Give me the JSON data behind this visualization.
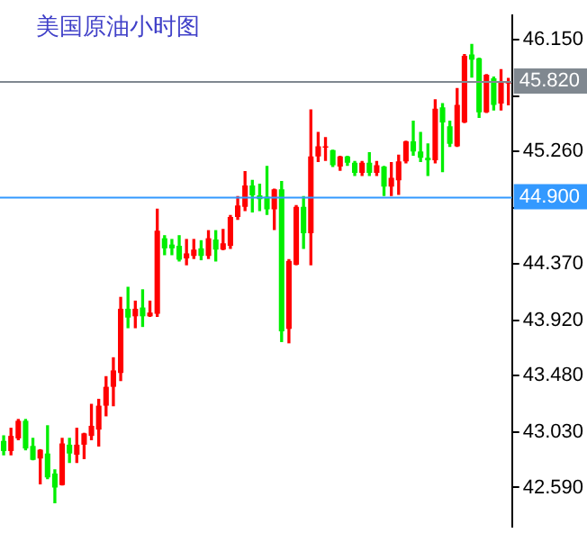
{
  "chart_data": {
    "type": "candlestick",
    "title": "美国原油小时图",
    "categories": [
      null,
      null,
      null,
      null,
      null,
      null,
      null,
      null,
      null,
      null,
      null,
      null,
      null,
      null,
      null,
      null,
      null,
      null,
      null,
      null,
      null,
      null,
      null,
      null,
      null,
      null,
      null,
      null,
      null,
      null,
      null,
      null,
      null,
      null,
      null,
      null,
      null,
      null,
      null,
      null,
      null,
      null,
      null,
      null,
      null,
      null,
      null,
      null,
      null,
      null,
      null,
      null,
      null,
      null,
      null,
      null,
      null,
      null,
      null,
      null,
      null,
      null,
      null,
      null,
      null,
      null,
      null,
      null,
      null,
      null
    ],
    "ohlc": [
      [
        42.96,
        43.0,
        42.85,
        42.88
      ],
      [
        42.88,
        43.06,
        42.85,
        43.0
      ],
      [
        42.98,
        43.13,
        42.97,
        43.12
      ],
      [
        43.12,
        43.13,
        42.89,
        42.9
      ],
      [
        42.92,
        42.98,
        42.81,
        42.81
      ],
      [
        42.82,
        42.89,
        42.62,
        42.89
      ],
      [
        42.86,
        43.08,
        42.66,
        42.67
      ],
      [
        42.7,
        42.73,
        42.47,
        42.59
      ],
      [
        42.61,
        42.98,
        42.61,
        42.94
      ],
      [
        42.93,
        42.98,
        42.79,
        42.86
      ],
      [
        42.85,
        43.06,
        42.79,
        42.93
      ],
      [
        42.93,
        43.02,
        42.82,
        43.02
      ],
      [
        43.0,
        43.25,
        42.97,
        43.08
      ],
      [
        43.05,
        43.29,
        42.92,
        43.24
      ],
      [
        43.24,
        43.47,
        43.16,
        43.39
      ],
      [
        43.39,
        43.62,
        43.24,
        43.52
      ],
      [
        43.5,
        44.1,
        43.44,
        44.01
      ],
      [
        44.01,
        44.18,
        43.86,
        43.94
      ],
      [
        43.95,
        44.07,
        43.86,
        44.01
      ],
      [
        44.02,
        44.16,
        43.87,
        43.95
      ],
      [
        43.95,
        44.07,
        43.95,
        43.98
      ],
      [
        43.97,
        44.8,
        43.95,
        44.63
      ],
      [
        44.57,
        44.59,
        44.44,
        44.49
      ],
      [
        44.52,
        44.56,
        44.44,
        44.49
      ],
      [
        44.51,
        44.59,
        44.39,
        44.4
      ],
      [
        44.41,
        44.56,
        44.36,
        44.45
      ],
      [
        44.43,
        44.56,
        44.41,
        44.48
      ],
      [
        44.49,
        44.55,
        44.4,
        44.43
      ],
      [
        44.43,
        44.63,
        44.41,
        44.57
      ],
      [
        44.56,
        44.63,
        44.39,
        44.48
      ],
      [
        44.48,
        44.64,
        44.48,
        44.53
      ],
      [
        44.51,
        44.75,
        44.49,
        44.74
      ],
      [
        44.74,
        44.9,
        44.72,
        44.83
      ],
      [
        44.82,
        45.1,
        44.79,
        44.99
      ],
      [
        44.99,
        45.03,
        44.78,
        44.91
      ],
      [
        44.91,
        45.0,
        44.79,
        44.88
      ],
      [
        44.9,
        45.14,
        44.76,
        44.8
      ],
      [
        44.8,
        44.96,
        44.64,
        44.96
      ],
      [
        44.96,
        45.02,
        43.75,
        43.83
      ],
      [
        43.85,
        44.4,
        43.74,
        44.39
      ],
      [
        44.36,
        44.83,
        44.36,
        44.82
      ],
      [
        44.82,
        44.9,
        44.49,
        44.61
      ],
      [
        44.61,
        45.59,
        44.36,
        45.22
      ],
      [
        45.22,
        45.41,
        45.18,
        45.3
      ],
      [
        45.29,
        45.37,
        45.19,
        45.3
      ],
      [
        45.27,
        45.27,
        45.14,
        45.15
      ],
      [
        45.14,
        45.22,
        45.11,
        45.22
      ],
      [
        45.22,
        45.22,
        45.15,
        45.17
      ],
      [
        45.17,
        45.18,
        45.07,
        45.09
      ],
      [
        45.09,
        45.18,
        45.07,
        45.17
      ],
      [
        45.17,
        45.25,
        45.07,
        45.09
      ],
      [
        45.09,
        45.18,
        45.07,
        45.15
      ],
      [
        45.14,
        45.14,
        44.91,
        44.98
      ],
      [
        44.98,
        45.17,
        44.91,
        45.05
      ],
      [
        45.03,
        45.23,
        44.92,
        45.18
      ],
      [
        45.18,
        45.34,
        45.17,
        45.34
      ],
      [
        45.34,
        45.5,
        45.23,
        45.26
      ],
      [
        45.26,
        45.41,
        45.18,
        45.21
      ],
      [
        45.21,
        45.32,
        45.07,
        45.19
      ],
      [
        45.19,
        45.67,
        45.17,
        45.6
      ],
      [
        45.61,
        45.64,
        45.1,
        45.49
      ],
      [
        45.46,
        45.5,
        45.3,
        45.32
      ],
      [
        45.3,
        45.76,
        45.3,
        45.63
      ],
      [
        45.49,
        46.03,
        45.49,
        46.02
      ],
      [
        46.03,
        46.11,
        45.85,
        45.99
      ],
      [
        46.0,
        46.0,
        45.53,
        45.57
      ],
      [
        45.57,
        45.87,
        45.57,
        45.87
      ],
      [
        45.84,
        45.85,
        45.59,
        45.63
      ],
      [
        45.64,
        45.91,
        45.59,
        45.81
      ],
      [
        45.8,
        45.84,
        45.63,
        45.81
      ]
    ],
    "colors": [
      "#00ee00",
      "#ff0000",
      "#ff0000",
      "#00ee00",
      "#00ee00",
      "#ff0000",
      "#00ee00",
      "#00ee00",
      "#ff0000",
      "#00ee00",
      "#ff0000",
      "#ff0000",
      "#ff0000",
      "#ff0000",
      "#ff0000",
      "#ff0000",
      "#ff0000",
      "#00ee00",
      "#ff0000",
      "#00ee00",
      "#ff0000",
      "#ff0000",
      "#00ee00",
      "#00ee00",
      "#00ee00",
      "#ff0000",
      "#ff0000",
      "#00ee00",
      "#ff0000",
      "#00ee00",
      "#ff0000",
      "#ff0000",
      "#ff0000",
      "#ff0000",
      "#00ee00",
      "#00ee00",
      "#00ee00",
      "#ff0000",
      "#00ee00",
      "#ff0000",
      "#ff0000",
      "#00ee00",
      "#ff0000",
      "#ff0000",
      "#ff0000",
      "#00ee00",
      "#ff0000",
      "#00ee00",
      "#00ee00",
      "#ff0000",
      "#00ee00",
      "#ff0000",
      "#00ee00",
      "#ff0000",
      "#ff0000",
      "#ff0000",
      "#00ee00",
      "#00ee00",
      "#00ee00",
      "#ff0000",
      "#00ee00",
      "#00ee00",
      "#ff0000",
      "#ff0000",
      "#00ee00",
      "#00ee00",
      "#ff0000",
      "#00ee00",
      "#ff0000",
      "#ff0000"
    ],
    "ylim": [
      42.28,
      46.34
    ],
    "yticks": [
      {
        "value": 42.59,
        "label": "42.590"
      },
      {
        "value": 43.03,
        "label": "43.030"
      },
      {
        "value": 43.48,
        "label": "43.480"
      },
      {
        "value": 43.92,
        "label": "43.920"
      },
      {
        "value": 44.37,
        "label": "44.370"
      },
      {
        "value": 44.81,
        "label": null
      },
      {
        "value": 45.26,
        "label": "45.260"
      },
      {
        "value": 45.7,
        "label": null
      },
      {
        "value": 46.15,
        "label": "46.150"
      }
    ],
    "ref_lines": [
      {
        "axis": "y",
        "value": 45.82,
        "label": "45.820",
        "color": "#808890"
      },
      {
        "axis": "y",
        "value": 44.9,
        "label": "44.900",
        "color": "#3399ff"
      }
    ],
    "grid": false,
    "legend": false
  }
}
